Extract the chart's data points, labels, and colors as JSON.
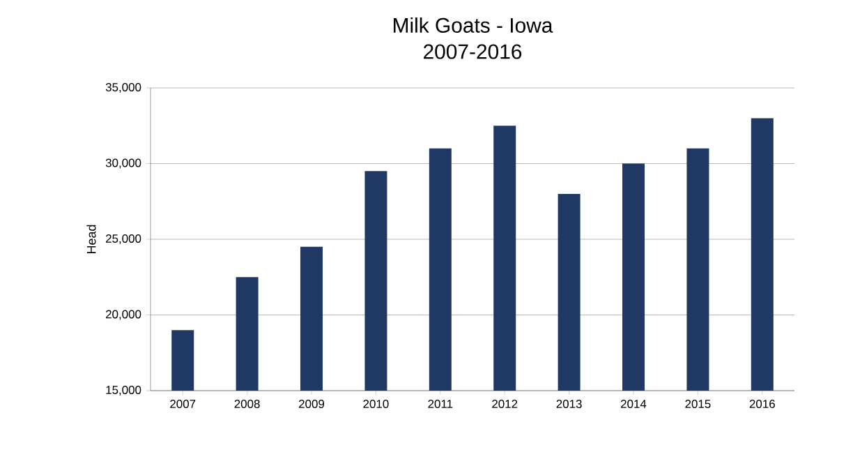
{
  "chart_data": {
    "type": "bar",
    "title": "Milk Goats - Iowa",
    "subtitle": "2007-2016",
    "ylabel": "Head",
    "categories": [
      "2007",
      "2008",
      "2009",
      "2010",
      "2011",
      "2012",
      "2013",
      "2014",
      "2015",
      "2016"
    ],
    "series": [
      {
        "color": "#1f3864",
        "values": [
          19000,
          22500,
          24500,
          29500,
          31000,
          32500,
          28000,
          30000,
          31000,
          33000
        ]
      }
    ],
    "ylim": [
      15000,
      35000
    ],
    "yticks": [
      {
        "value": 15000,
        "label": "15,000"
      },
      {
        "value": 20000,
        "label": "20,000"
      },
      {
        "value": 25000,
        "label": "25,000"
      },
      {
        "value": 30000,
        "label": "30,000"
      },
      {
        "value": 35000,
        "label": "35,000"
      }
    ],
    "grid": "y"
  }
}
